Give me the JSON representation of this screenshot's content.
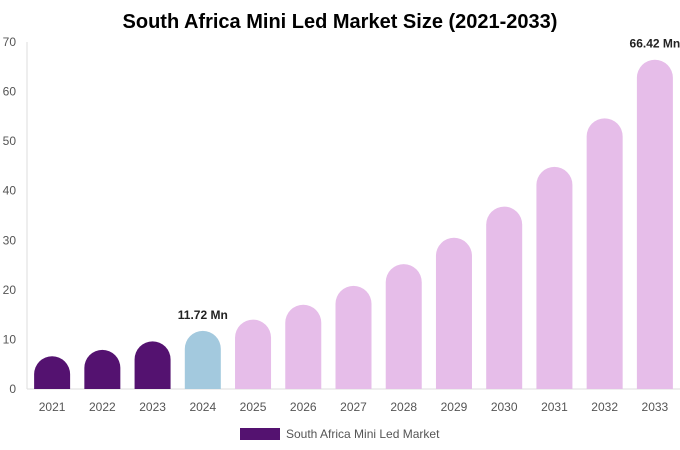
{
  "chart_data": {
    "type": "bar",
    "title": "South Africa Mini Led Market Size (2021-2033)",
    "xlabel": "",
    "ylabel": "",
    "ylim": [
      0,
      70
    ],
    "yticks": [
      0,
      10,
      20,
      30,
      40,
      50,
      60,
      70
    ],
    "grid": false,
    "legend_position": "bottom",
    "categories": [
      "2021",
      "2022",
      "2023",
      "2024",
      "2025",
      "2026",
      "2027",
      "2028",
      "2029",
      "2030",
      "2031",
      "2032",
      "2033"
    ],
    "series": [
      {
        "name": "South Africa Mini Led Market",
        "values": [
          6.6,
          7.9,
          9.6,
          11.72,
          14.0,
          17.0,
          20.8,
          25.2,
          30.5,
          36.8,
          44.8,
          54.6,
          66.42
        ],
        "colors": [
          "#541270",
          "#541270",
          "#541270",
          "#a3c9de",
          "#e6bde9",
          "#e6bde9",
          "#e6bde9",
          "#e6bde9",
          "#e6bde9",
          "#e6bde9",
          "#e6bde9",
          "#e6bde9",
          "#e6bde9"
        ]
      }
    ],
    "data_labels": [
      {
        "category": "2024",
        "text": "11.72 Mn"
      },
      {
        "category": "2033",
        "text": "66.42 Mn"
      }
    ],
    "legend_color": "#541270"
  }
}
